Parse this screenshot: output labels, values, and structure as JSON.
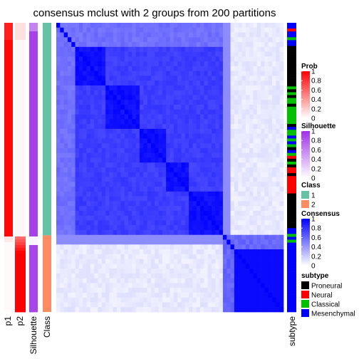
{
  "chart_data": {
    "type": "heatmap",
    "title": "consensus mclust with 2 groups from 200 partitions",
    "annotation_labels": [
      "p1",
      "p2",
      "Silhouette",
      "Class"
    ],
    "right_annotation_label": "subtype",
    "groups": [
      {
        "name": "1",
        "fraction": 0.735,
        "color": "#66C2A5"
      },
      {
        "name": "2",
        "fraction": 0.265,
        "color": "#FC8D62"
      }
    ],
    "legends": [
      {
        "title": "Prob",
        "ticks": [
          "1",
          "0.8",
          "0.6",
          "0.4",
          "0.2",
          "0"
        ],
        "color_high": "#FF0000",
        "color_low": "#FFFFFF"
      },
      {
        "title": "Silhouette",
        "ticks": [
          "1",
          "0.8",
          "0.6",
          "0.4",
          "0.2",
          "0"
        ],
        "color_high": "#9E31E8",
        "color_low": "#FFFFFF"
      },
      {
        "title": "Class",
        "entries": [
          {
            "label": "1",
            "color": "#66C2A5"
          },
          {
            "label": "2",
            "color": "#FC8D62"
          }
        ]
      },
      {
        "title": "Consensus",
        "ticks": [
          "1",
          "0.8",
          "0.6",
          "0.4",
          "0.2",
          "0"
        ],
        "color_high": "#0000FF",
        "color_low": "#FFFFFF"
      },
      {
        "title": "subtype",
        "entries": [
          {
            "label": "Proneural",
            "color": "#000000"
          },
          {
            "label": "Neural",
            "color": "#FF0000"
          },
          {
            "label": "Classical",
            "color": "#00C000"
          },
          {
            "label": "Mesenchymal",
            "color": "#0000FF"
          }
        ]
      }
    ],
    "subtype_sequence": [
      "Mesenchymal",
      "Mesenchymal",
      "Neural",
      "Mesenchymal",
      "Mesenchymal",
      "Classical",
      "Mesenchymal",
      "Mesenchymal",
      "Proneural",
      "Proneural",
      "Proneural",
      "Proneural",
      "Proneural",
      "Proneural",
      "Proneural",
      "Proneural",
      "Proneural",
      "Proneural",
      "Proneural",
      "Proneural",
      "Proneural",
      "Proneural",
      "Classical",
      "Proneural",
      "Classical",
      "Proneural",
      "Classical",
      "Classical",
      "Proneural",
      "Classical",
      "Classical",
      "Classical",
      "Classical",
      "Classical",
      "Classical",
      "Proneural",
      "Mesenchymal",
      "Classical",
      "Classical",
      "Mesenchymal",
      "Classical",
      "Mesenchymal",
      "Classical",
      "Proneural",
      "Mesenchymal",
      "Classical",
      "Neural",
      "Proneural",
      "Classical",
      "Proneural",
      "Neural",
      "Neural",
      "Proneural",
      "Neural",
      "Neural",
      "Neural",
      "Neural",
      "Neural",
      "Neural",
      "Proneural",
      "Proneural",
      "Proneural",
      "Proneural",
      "Proneural",
      "Proneural",
      "Proneural",
      "Proneural",
      "Proneural",
      "Proneural",
      "Proneural",
      "Proneural",
      "Mesenchymal",
      "Mesenchymal",
      "Classical",
      "Mesenchymal",
      "Classical",
      "Mesenchymal",
      "Mesenchymal",
      "Mesenchymal",
      "Mesenchymal",
      "Mesenchymal",
      "Mesenchymal",
      "Mesenchymal",
      "Mesenchymal",
      "Mesenchymal",
      "Mesenchymal",
      "Mesenchymal",
      "Mesenchymal",
      "Mesenchymal",
      "Mesenchymal",
      "Mesenchymal",
      "Mesenchymal",
      "Mesenchymal",
      "Mesenchymal",
      "Mesenchymal",
      "Mesenchymal",
      "Mesenchymal",
      "Mesenchymal",
      "Mesenchymal",
      "Mesenchymal"
    ]
  }
}
